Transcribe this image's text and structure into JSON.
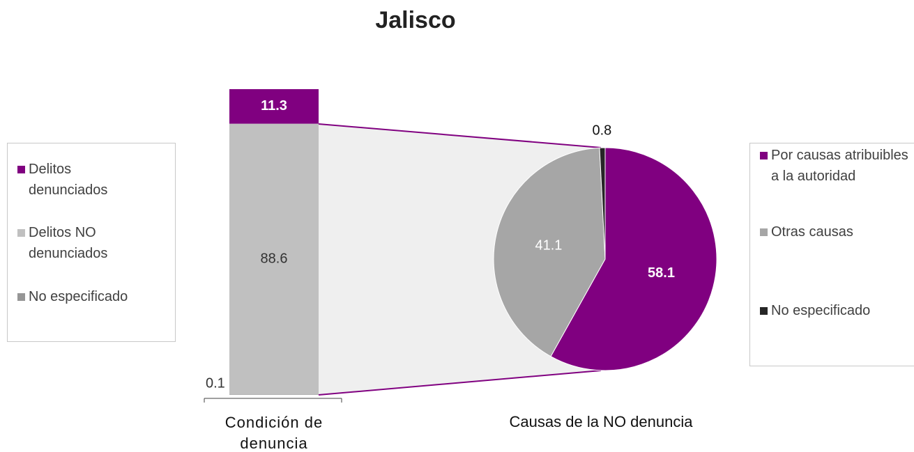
{
  "chart_data": [
    {
      "type": "stacked_bar",
      "title": "Jalisco",
      "categories": [
        "Condición de denuncia"
      ],
      "series": [
        {
          "name": "Delitos denunciados",
          "color": "#800080",
          "values": [
            11.3
          ]
        },
        {
          "name": "Delitos NO denunciados",
          "color": "#c0c0c0",
          "values": [
            88.6
          ]
        },
        {
          "name": "No especificado",
          "color": "#969696",
          "values": [
            0.1
          ]
        }
      ]
    },
    {
      "type": "pie",
      "xlabel": "Causas de la NO denuncia",
      "categories": [
        "Por causas atribuibles a la autoridad",
        "Otras causas",
        "No especificado"
      ],
      "values": [
        58.1,
        41.1,
        0.8
      ],
      "colors": [
        "#800080",
        "#a6a6a6",
        "#262626"
      ]
    }
  ]
}
